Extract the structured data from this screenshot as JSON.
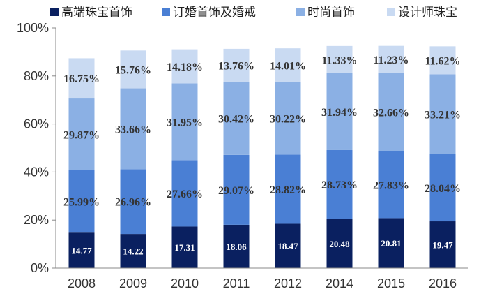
{
  "chart_data": {
    "type": "bar",
    "stacked": true,
    "categories": [
      "2008",
      "2009",
      "2010",
      "2011",
      "2012",
      "2014",
      "2015",
      "2016"
    ],
    "series": [
      {
        "name": "高端珠宝首饰",
        "color": "#0a2060",
        "values": [
          14.77,
          14.22,
          17.31,
          18.06,
          18.47,
          20.48,
          20.81,
          19.47
        ],
        "labels": [
          "14.77",
          "14.22",
          "17.31",
          "18.06",
          "18.47",
          "20.48",
          "20.81",
          "19.47"
        ]
      },
      {
        "name": "订婚首饰及婚戒",
        "color": "#4a7fd4",
        "values": [
          25.99,
          26.96,
          27.66,
          29.07,
          28.82,
          28.73,
          27.83,
          28.04
        ],
        "labels": [
          "25.99%",
          "26.96%",
          "27.66%",
          "29.07%",
          "28.82%",
          "28.73%",
          "27.83%",
          "28.04%"
        ]
      },
      {
        "name": "时尚首饰",
        "color": "#8bb0e4",
        "values": [
          29.87,
          33.66,
          31.95,
          30.42,
          30.22,
          31.94,
          32.66,
          33.21
        ],
        "labels": [
          "29.87%",
          "33.66%",
          "31.95%",
          "30.42%",
          "30.22%",
          "31.94%",
          "32.66%",
          "33.21%"
        ]
      },
      {
        "name": "设计师珠宝",
        "color": "#c9daf2",
        "values": [
          16.75,
          15.76,
          14.18,
          13.76,
          14.01,
          11.33,
          11.23,
          11.62
        ],
        "labels": [
          "16.75%",
          "15.76%",
          "14.18%",
          "13.76%",
          "14.01%",
          "11.33%",
          "11.23%",
          "11.62%"
        ]
      }
    ],
    "yticks": [
      "0%",
      "20%",
      "40%",
      "60%",
      "80%",
      "100%"
    ],
    "ylim": [
      0,
      100
    ],
    "grid": false,
    "legend_position": "top"
  }
}
